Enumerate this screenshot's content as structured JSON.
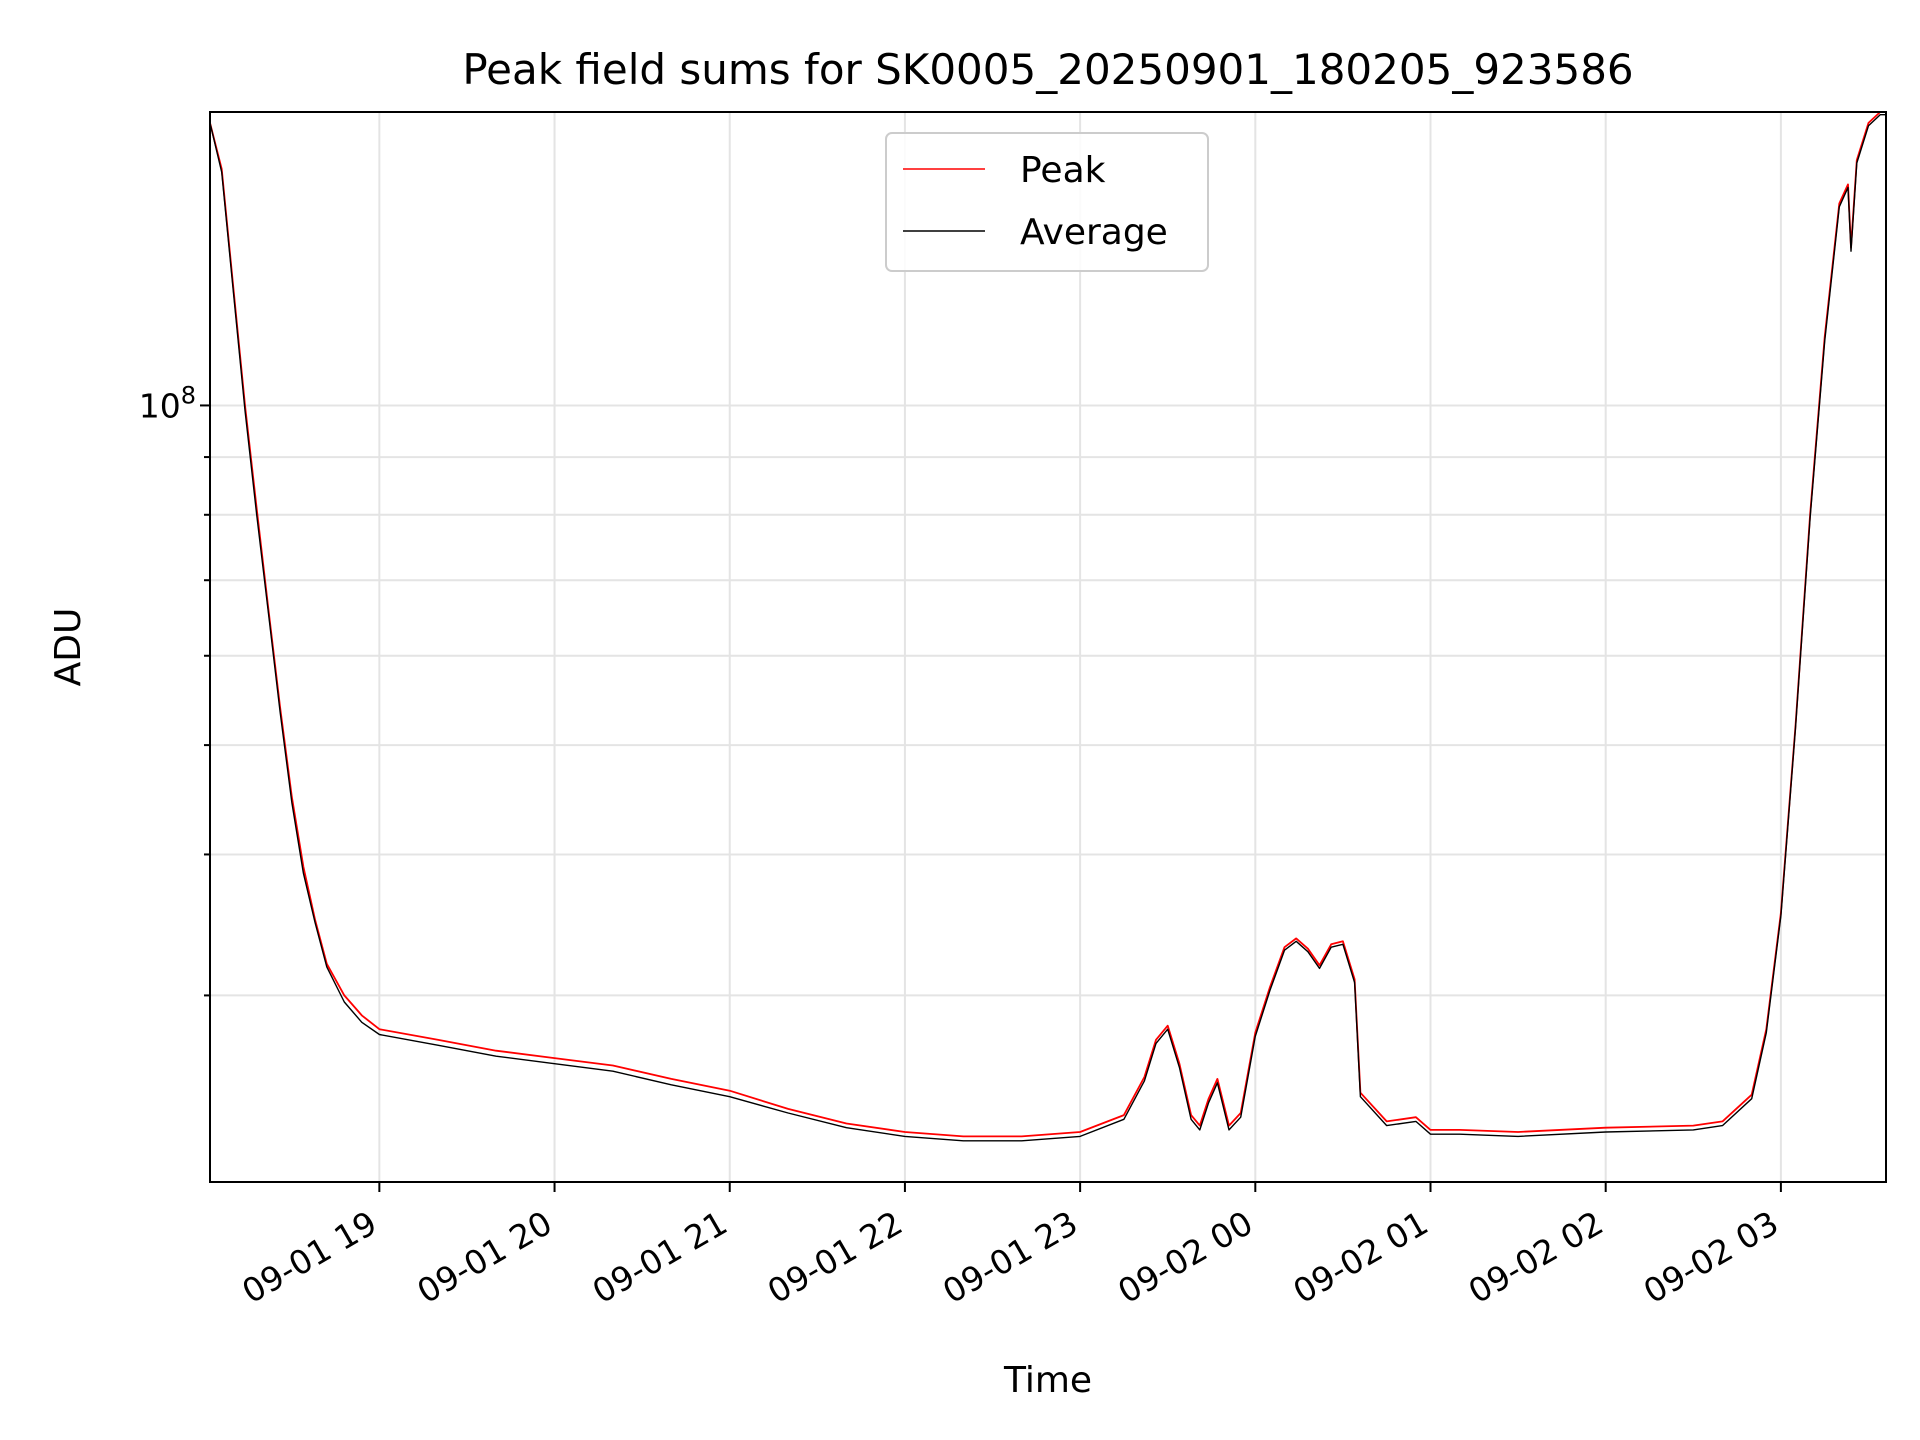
{
  "chart_data": {
    "type": "line",
    "title": "Peak field sums for SK0005_20250901_180205_923586",
    "xlabel": "Time",
    "ylabel": "ADU",
    "yscale": "log",
    "xlim": [
      "2025-09-01 18:02",
      "2025-09-02 03:36"
    ],
    "ylim": [
      20500000,
      182000000
    ],
    "grid": true,
    "legend_position": "upper center",
    "x_ticks": [
      "09-01 19",
      "09-01 20",
      "09-01 21",
      "09-01 22",
      "09-01 23",
      "09-02 00",
      "09-02 01",
      "09-02 02",
      "09-02 03"
    ],
    "y_tick_label": {
      "base": "10",
      "exponent": "8"
    },
    "series": [
      {
        "name": "Peak",
        "color": "#ff0000",
        "x": [
          "2025-09-01 18:02",
          "2025-09-01 18:06",
          "2025-09-01 18:10",
          "2025-09-01 18:14",
          "2025-09-01 18:18",
          "2025-09-01 18:22",
          "2025-09-01 18:26",
          "2025-09-01 18:30",
          "2025-09-01 18:34",
          "2025-09-01 18:38",
          "2025-09-01 18:42",
          "2025-09-01 18:48",
          "2025-09-01 18:54",
          "2025-09-01 19:00",
          "2025-09-01 19:20",
          "2025-09-01 19:40",
          "2025-09-01 20:00",
          "2025-09-01 20:20",
          "2025-09-01 20:40",
          "2025-09-01 21:00",
          "2025-09-01 21:20",
          "2025-09-01 21:40",
          "2025-09-01 22:00",
          "2025-09-01 22:20",
          "2025-09-01 22:40",
          "2025-09-01 23:00",
          "2025-09-01 23:15",
          "2025-09-01 23:22",
          "2025-09-01 23:26",
          "2025-09-01 23:30",
          "2025-09-01 23:34",
          "2025-09-01 23:38",
          "2025-09-01 23:41",
          "2025-09-01 23:44",
          "2025-09-01 23:47",
          "2025-09-01 23:51",
          "2025-09-01 23:55",
          "2025-09-02 00:00",
          "2025-09-02 00:05",
          "2025-09-02 00:10",
          "2025-09-02 00:14",
          "2025-09-02 00:18",
          "2025-09-02 00:22",
          "2025-09-02 00:26",
          "2025-09-02 00:30",
          "2025-09-02 00:34",
          "2025-09-02 00:36",
          "2025-09-02 00:45",
          "2025-09-02 00:55",
          "2025-09-02 01:00",
          "2025-09-02 01:10",
          "2025-09-02 01:30",
          "2025-09-02 02:00",
          "2025-09-02 02:30",
          "2025-09-02 02:40",
          "2025-09-02 02:50",
          "2025-09-02 02:55",
          "2025-09-02 03:00",
          "2025-09-02 03:05",
          "2025-09-02 03:10",
          "2025-09-02 03:15",
          "2025-09-02 03:20",
          "2025-09-02 03:23",
          "2025-09-02 03:24",
          "2025-09-02 03:26",
          "2025-09-02 03:30",
          "2025-09-02 03:34",
          "2025-09-02 03:36"
        ],
        "y": [
          178000000,
          162000000,
          127000000,
          100000000,
          81000000,
          66000000,
          54000000,
          45000000,
          39000000,
          35000000,
          32000000,
          30000000,
          28800000,
          28000000,
          27400000,
          26800000,
          26400000,
          26000000,
          25300000,
          24700000,
          23800000,
          23100000,
          22700000,
          22500000,
          22500000,
          22700000,
          23500000,
          25400000,
          27400000,
          28200000,
          26100000,
          23500000,
          23000000,
          24300000,
          25300000,
          23000000,
          23600000,
          27800000,
          30500000,
          33100000,
          33700000,
          33000000,
          31900000,
          33300000,
          33500000,
          31000000,
          24600000,
          23200000,
          23400000,
          22800000,
          22800000,
          22700000,
          22900000,
          23000000,
          23200000,
          24500000,
          28000000,
          35500000,
          52000000,
          80000000,
          115000000,
          151000000,
          157000000,
          138000000,
          165000000,
          178000000,
          182000000,
          182000000
        ]
      },
      {
        "name": "Average",
        "color": "#000000",
        "x": [
          "2025-09-01 18:02",
          "2025-09-01 18:06",
          "2025-09-01 18:10",
          "2025-09-01 18:14",
          "2025-09-01 18:18",
          "2025-09-01 18:22",
          "2025-09-01 18:26",
          "2025-09-01 18:30",
          "2025-09-01 18:34",
          "2025-09-01 18:38",
          "2025-09-01 18:42",
          "2025-09-01 18:48",
          "2025-09-01 18:54",
          "2025-09-01 19:00",
          "2025-09-01 19:20",
          "2025-09-01 19:40",
          "2025-09-01 20:00",
          "2025-09-01 20:20",
          "2025-09-01 20:40",
          "2025-09-01 21:00",
          "2025-09-01 21:20",
          "2025-09-01 21:40",
          "2025-09-01 22:00",
          "2025-09-01 22:20",
          "2025-09-01 22:40",
          "2025-09-01 23:00",
          "2025-09-01 23:15",
          "2025-09-01 23:22",
          "2025-09-01 23:26",
          "2025-09-01 23:30",
          "2025-09-01 23:34",
          "2025-09-01 23:38",
          "2025-09-01 23:41",
          "2025-09-01 23:44",
          "2025-09-01 23:47",
          "2025-09-01 23:51",
          "2025-09-01 23:55",
          "2025-09-02 00:00",
          "2025-09-02 00:05",
          "2025-09-02 00:10",
          "2025-09-02 00:14",
          "2025-09-02 00:18",
          "2025-09-02 00:22",
          "2025-09-02 00:26",
          "2025-09-02 00:30",
          "2025-09-02 00:34",
          "2025-09-02 00:36",
          "2025-09-02 00:45",
          "2025-09-02 00:55",
          "2025-09-02 01:00",
          "2025-09-02 01:10",
          "2025-09-02 01:30",
          "2025-09-02 02:00",
          "2025-09-02 02:30",
          "2025-09-02 02:40",
          "2025-09-02 02:50",
          "2025-09-02 02:55",
          "2025-09-02 03:00",
          "2025-09-02 03:05",
          "2025-09-02 03:10",
          "2025-09-02 03:15",
          "2025-09-02 03:20",
          "2025-09-02 03:23",
          "2025-09-02 03:24",
          "2025-09-02 03:26",
          "2025-09-02 03:30",
          "2025-09-02 03:34",
          "2025-09-02 03:36"
        ],
        "y": [
          178000000,
          161000000,
          126000000,
          99000000,
          80000000,
          65500000,
          53500000,
          44500000,
          38500000,
          34800000,
          31800000,
          29600000,
          28400000,
          27700000,
          27100000,
          26500000,
          26100000,
          25700000,
          25000000,
          24400000,
          23600000,
          22900000,
          22500000,
          22300000,
          22300000,
          22500000,
          23300000,
          25200000,
          27200000,
          28000000,
          25900000,
          23300000,
          22800000,
          24100000,
          25100000,
          22800000,
          23400000,
          27600000,
          30300000,
          32900000,
          33500000,
          32800000,
          31700000,
          33100000,
          33300000,
          30800000,
          24400000,
          23000000,
          23200000,
          22600000,
          22600000,
          22500000,
          22700000,
          22800000,
          23000000,
          24300000,
          27800000,
          35300000,
          51800000,
          79500000,
          114000000,
          150000000,
          156000000,
          137000000,
          164000000,
          177000000,
          181000000,
          181000000
        ]
      }
    ]
  }
}
